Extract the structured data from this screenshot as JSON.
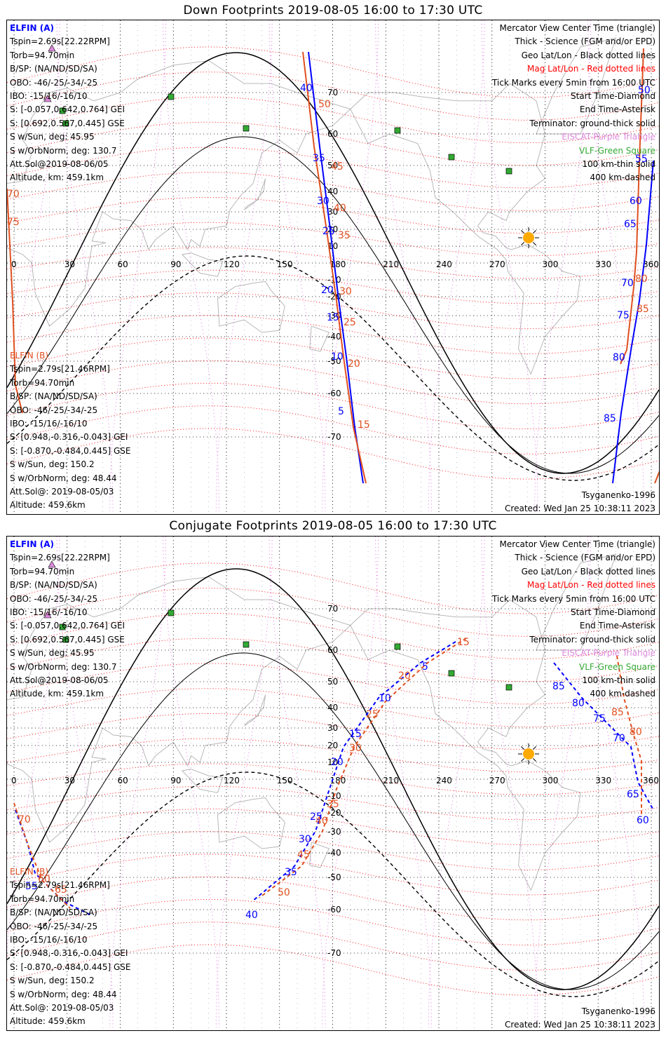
{
  "panels": [
    {
      "title": "Down Footprints 2019-08-05 16:00 to 17:30 UTC",
      "left_a": {
        "header": "ELFIN (A)",
        "lines": [
          "Tspin=2.69s[22.22RPM]",
          "Torb=94.70min",
          "B/SP: (NA/ND/SD/SA)",
          "OBO: -46/-25/-34/-25",
          "IBO: -15/16/-16/10",
          "S: [-0.057,0.642,0.764] GEI",
          "S: [0.692,0.567,0.445] GSE",
          "S w/Sun, deg: 45.95",
          "S w/OrbNorm, deg: 130.7",
          "Att.Sol@2019-08-06/05",
          "Altitude, km: 459.1km"
        ]
      },
      "left_b": {
        "header": "ELFIN (B)",
        "lines": [
          "Tspin=2.79s[21.46RPM]",
          "Torb=94.70min",
          "B/SP: (NA/ND/SD/SA)",
          "OBO: -46/-25/-34/-25",
          "IBO: -15/16/-16/10",
          "S: [0.948,-0.316,-0.043] GEI",
          "S: [-0.870,-0.484,0.445] GSE",
          "S w/Sun, deg: 150.2",
          "S w/OrbNorm, deg: 48.44",
          "Att.Sol@: 2019-08-05/03",
          "Altitude: 459.6km"
        ]
      },
      "legend": [
        {
          "text": "Mercator View Center Time (triangle)",
          "style": "k"
        },
        {
          "text": "Thick - Science (FGM and/or EPD)",
          "style": "k"
        },
        {
          "text": "Geo Lat/Lon - Black dotted lines",
          "style": "k"
        },
        {
          "text": "Mag Lat/Lon - Red dotted lines",
          "style": "r"
        },
        {
          "text": "Tick Marks every 5min from 16:00 UTC",
          "style": "k"
        },
        {
          "text": "Start Time-Diamond",
          "style": "k"
        },
        {
          "text": "End Time-Asterisk",
          "style": "k"
        },
        {
          "text": "Terminator: ground-thick solid",
          "style": "k"
        },
        {
          "text": "EISCAT-Purple Triangle",
          "style": "v"
        },
        {
          "text": "VLF-Green Square",
          "style": "g"
        },
        {
          "text": "100 km-thin solid",
          "style": "k"
        },
        {
          "text": "400 km-dashed",
          "style": "k"
        }
      ],
      "model": "Tsyganenko-1996",
      "created": "Created: Wed Jan 25 10:38:11 2023",
      "lon_ticks": [
        "0",
        "30",
        "60",
        "90",
        "120",
        "150",
        "180",
        "210",
        "240",
        "270",
        "300",
        "330",
        "360"
      ],
      "lat_ticks": [
        "70",
        "60",
        "50",
        "40",
        "30",
        "20",
        "10",
        "-10",
        "-20",
        "-30",
        "-40",
        "-50",
        "-60",
        "-70"
      ],
      "track_labels": {
        "blue": [
          "40",
          "35",
          "30",
          "25",
          "20",
          "15",
          "10",
          "5",
          "50",
          "55",
          "60",
          "65",
          "70",
          "75",
          "80",
          "85"
        ],
        "red": [
          "50",
          "45",
          "40",
          "35",
          "30",
          "25",
          "20",
          "15",
          "70",
          "75",
          "80",
          "85"
        ]
      }
    },
    {
      "title": "Conjugate Footprints 2019-08-05 16:00 to 17:30 UTC",
      "left_a": {
        "header": "ELFIN (A)",
        "lines": [
          "Tspin=2.69s[22.22RPM]",
          "Torb=94.70min",
          "B/SP: (NA/ND/SD/SA)",
          "OBO: -46/-25/-34/-25",
          "IBO: -15/16/-16/10",
          "S: [-0.057,0.642,0.764] GEI",
          "S: [0.692,0.567,0.445] GSE",
          "S w/Sun, deg: 45.95",
          "S w/OrbNorm, deg: 130.7",
          "Att.Sol@2019-08-06/05",
          "Altitude, km: 459.1km"
        ]
      },
      "left_b": {
        "header": "ELFIN (B)",
        "lines": [
          "Tspin=2.79s[21.46RPM]",
          "Torb=94.70min",
          "B/SP: (NA/ND/SD/SA)",
          "OBO: -46/-25/-34/-25",
          "IBO: -15/16/-16/10",
          "S: [0.948,-0.316,-0.043] GEI",
          "S: [-0.870,-0.484,0.445] GSE",
          "S w/Sun, deg: 150.2",
          "S w/OrbNorm, deg: 48.44",
          "Att.Sol@: 2019-08-05/03",
          "Altitude: 459.6km"
        ]
      },
      "legend": [
        {
          "text": "Mercator View Center Time (triangle)",
          "style": "k"
        },
        {
          "text": "Thick - Science (FGM and/or EPD)",
          "style": "k"
        },
        {
          "text": "Geo Lat/Lon - Black dotted lines",
          "style": "k"
        },
        {
          "text": "Mag Lat/Lon - Red dotted lines",
          "style": "r"
        },
        {
          "text": "Tick Marks every 5min from 16:00 UTC",
          "style": "k"
        },
        {
          "text": "Start Time-Diamond",
          "style": "k"
        },
        {
          "text": "End Time-Asterisk",
          "style": "k"
        },
        {
          "text": "Terminator: ground-thick solid",
          "style": "k"
        },
        {
          "text": "EISCAT-Purple Triangle",
          "style": "v"
        },
        {
          "text": "VLF-Green Square",
          "style": "g"
        },
        {
          "text": "100 km-thin solid",
          "style": "k"
        },
        {
          "text": "400 km-dashed",
          "style": "k"
        }
      ],
      "model": "Tsyganenko-1996",
      "created": "Created: Wed Jan 25 10:38:11 2023",
      "lon_ticks": [
        "0",
        "30",
        "60",
        "90",
        "120",
        "150",
        "180",
        "210",
        "240",
        "270",
        "300",
        "330",
        "360"
      ],
      "lat_ticks": [
        "70",
        "60",
        "50",
        "40",
        "30",
        "20",
        "10",
        "-10",
        "-20",
        "-30",
        "-40",
        "-50",
        "-60",
        "-70"
      ],
      "track_labels": {
        "blue": [
          "5",
          "10",
          "15",
          "20",
          "25",
          "30",
          "35",
          "40",
          "55",
          "60",
          "65",
          "70",
          "75",
          "80",
          "85"
        ],
        "red": [
          "15",
          "20",
          "25",
          "30",
          "35",
          "40",
          "45",
          "50",
          "60",
          "65",
          "70",
          "80",
          "85"
        ]
      }
    }
  ],
  "colors": {
    "elfin_a": "#0000ff",
    "elfin_b": "#e05020",
    "geo_grid": "#000000",
    "mag_grid": "#ff0000",
    "eiscat": "#dd88dd",
    "vlf": "#33aa33",
    "sun": "#ffaa00"
  }
}
